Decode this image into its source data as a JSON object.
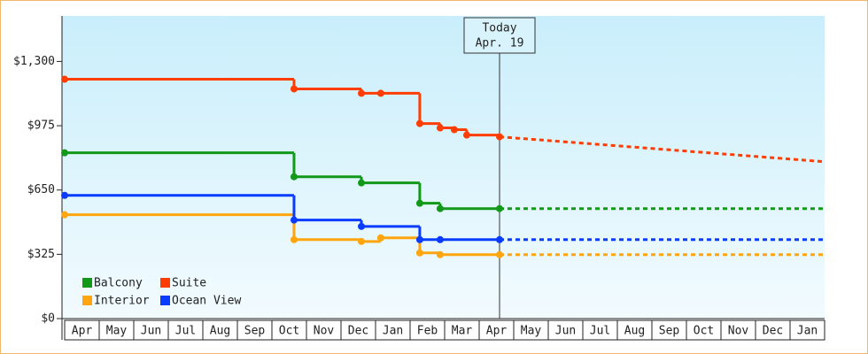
{
  "chart_data": {
    "type": "step-line",
    "categories": [
      "Apr",
      "May",
      "Jun",
      "Jul",
      "Aug",
      "Sep",
      "Oct",
      "Nov",
      "Dec",
      "Jan",
      "Feb",
      "Mar",
      "Apr",
      "May",
      "Jun",
      "Jul",
      "Aug",
      "Sep",
      "Oct",
      "Nov",
      "Dec",
      "Jan"
    ],
    "xlim": [
      0,
      22
    ],
    "ylim": [
      0,
      1530
    ],
    "yticks": [
      0,
      325,
      650,
      975,
      1300
    ],
    "ytick_labels": [
      "$0",
      "$325",
      "$650",
      "$975",
      "$1,300"
    ],
    "today": {
      "x": 12.59,
      "title": "Today",
      "date": "Apr. 19"
    },
    "legend": "lower left",
    "series": [
      {
        "name": "Balcony",
        "color": "#12991a",
        "x": [
          0,
          6.64,
          8.59,
          10.28,
          10.87,
          12.59
        ],
        "values": [
          838,
          717,
          686,
          583,
          556,
          556
        ],
        "forecast": 556
      },
      {
        "name": "Suite",
        "color": "#ff3d00",
        "x": [
          0,
          6.64,
          8.59,
          9.15,
          10.28,
          10.87,
          11.28,
          11.64,
          12.59
        ],
        "values": [
          1210,
          1161,
          1139,
          1139,
          986,
          964,
          955,
          928,
          919
        ],
        "forecast": 793
      },
      {
        "name": "Interior",
        "color": "#ffa50f",
        "x": [
          0,
          6.64,
          8.59,
          9.15,
          10.28,
          10.87,
          12.59
        ],
        "values": [
          525,
          399,
          390,
          408,
          332,
          323,
          323
        ],
        "forecast": 323
      },
      {
        "name": "Ocean View",
        "color": "#0a3cff",
        "x": [
          0,
          6.64,
          8.59,
          10.28,
          10.87,
          12.59
        ],
        "values": [
          623,
          498,
          466,
          399,
          399,
          399
        ],
        "forecast": 399
      }
    ]
  }
}
